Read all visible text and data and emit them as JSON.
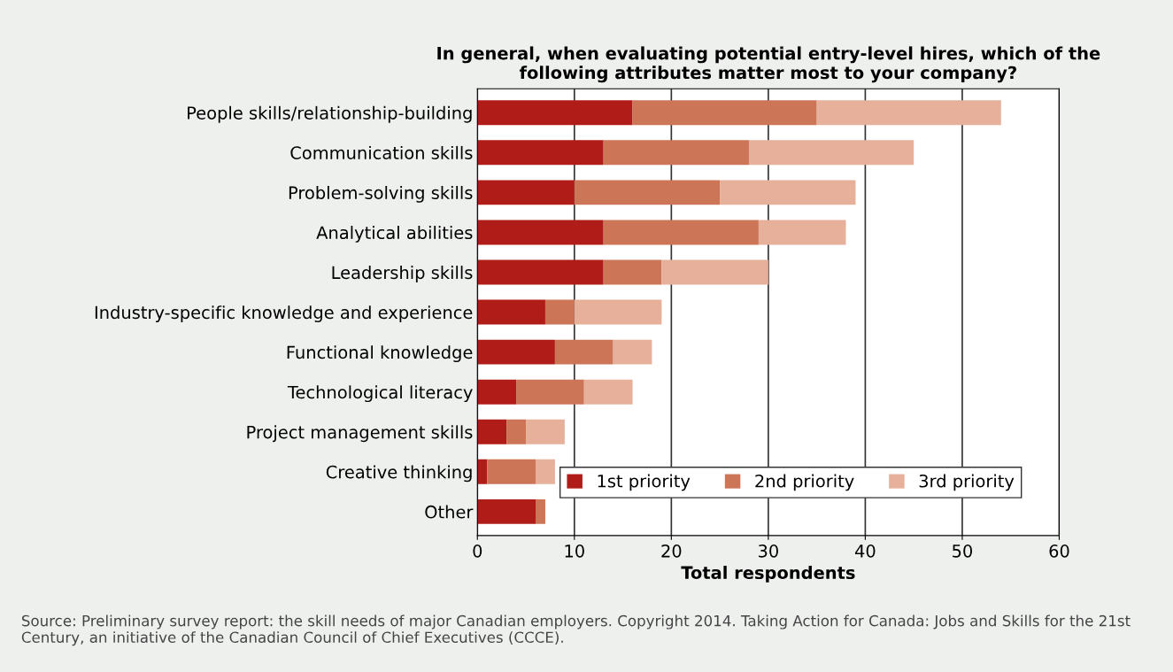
{
  "chart_data": {
    "type": "bar",
    "orientation": "horizontal",
    "stacked": true,
    "title": "In general, when evaluating potential entry-level hires, which of the\nfollowing attributes matter most to your company?",
    "xlabel": "Total respondents",
    "categories": [
      "People skills/relationship-building",
      "Communication skills",
      "Problem-solving skills",
      "Analytical abilities",
      "Leadership skills",
      "Industry-specific knowledge and experience",
      "Functional knowledge",
      "Technological literacy",
      "Project management skills",
      "Creative thinking",
      "Other"
    ],
    "series": [
      {
        "name": "1st priority",
        "color": "#b01c17",
        "values": [
          16,
          13,
          10,
          13,
          13,
          7,
          8,
          4,
          3,
          1,
          6
        ]
      },
      {
        "name": "2nd priority",
        "color": "#cc7557",
        "values": [
          19,
          15,
          15,
          16,
          6,
          3,
          6,
          7,
          2,
          5,
          1
        ]
      },
      {
        "name": "3rd priority",
        "color": "#e6b09a",
        "values": [
          19,
          17,
          14,
          9,
          11,
          9,
          4,
          5,
          4,
          2,
          0
        ]
      }
    ],
    "xlim": [
      0,
      60
    ],
    "xticks": [
      0,
      10,
      20,
      30,
      40,
      50,
      60
    ],
    "grid": "x",
    "legend": "bottom right",
    "annotations": [
      "Source: Preliminary survey report: the skill needs of major Canadian employers. Copyright 2014. Taking Action for Canada: Jobs and Skills for the 21st Century, an initiative of the Canadian Council of Chief Executives (CCCE)."
    ]
  }
}
